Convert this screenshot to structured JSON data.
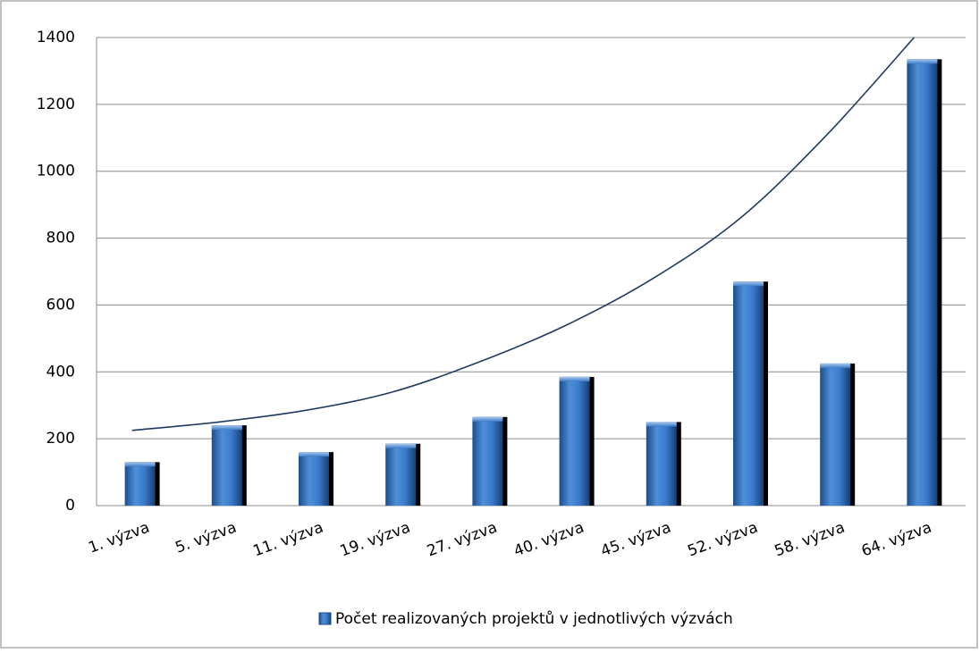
{
  "chart_data": {
    "type": "bar",
    "categories": [
      "1. výzva",
      "5. výzva",
      "11. výzva",
      "19. výzva",
      "27. výzva",
      "40. výzva",
      "45. výzva",
      "52. výzva",
      "58. výzva",
      "64. výzva"
    ],
    "series": [
      {
        "name": "Počet realizovaných projektů v jednotlivých výzvách",
        "color": "#2e6fc0",
        "values": [
          130,
          240,
          160,
          185,
          265,
          385,
          250,
          670,
          425,
          1335
        ]
      }
    ],
    "trendline": {
      "type": "exponential",
      "color": "#1f3a5f",
      "values": [
        225,
        250,
        285,
        340,
        430,
        540,
        680,
        860,
        1110,
        1400
      ]
    },
    "ylim": [
      0,
      1400
    ],
    "yticks": [
      0,
      200,
      400,
      600,
      800,
      1000,
      1200,
      1400
    ],
    "grid": true,
    "legend": "bottom"
  }
}
